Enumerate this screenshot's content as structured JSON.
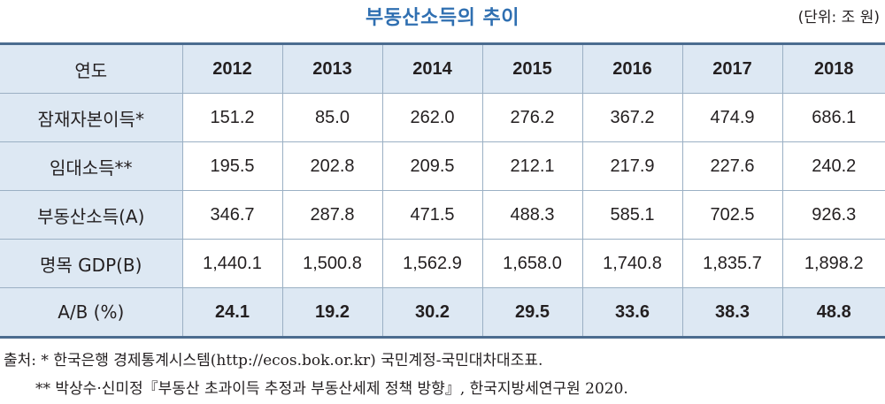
{
  "title": "부동산소득의 추이",
  "unit": "(단위: 조 원)",
  "table": {
    "header": [
      "연도",
      "2012",
      "2013",
      "2014",
      "2015",
      "2016",
      "2017",
      "2018"
    ],
    "rows": [
      {
        "label": "잠재자본이득*",
        "values": [
          "151.2",
          "85.0",
          "262.0",
          "276.2",
          "367.2",
          "474.9",
          "686.1"
        ]
      },
      {
        "label": "임대소득**",
        "values": [
          "195.5",
          "202.8",
          "209.5",
          "212.1",
          "217.9",
          "227.6",
          "240.2"
        ]
      },
      {
        "label": "부동산소득(A)",
        "values": [
          "346.7",
          "287.8",
          "471.5",
          "488.3",
          "585.1",
          "702.5",
          "926.3"
        ]
      },
      {
        "label": "명목 GDP(B)",
        "values": [
          "1,440.1",
          "1,500.8",
          "1,562.9",
          "1,658.0",
          "1,740.8",
          "1,835.7",
          "1,898.2"
        ]
      },
      {
        "label": "A/B (%)",
        "values": [
          "24.1",
          "19.2",
          "30.2",
          "29.5",
          "33.6",
          "38.3",
          "48.8"
        ]
      }
    ]
  },
  "notes": {
    "line1": "출처: * 한국은행 경제통계시스템(http://ecos.bok.or.kr) 국민계정-국민대차대조표.",
    "line2": "** 박상수·신미정『부동산 초과이득 추정과 부동산세제 정책 방향』, 한국지방세연구원 2020."
  }
}
